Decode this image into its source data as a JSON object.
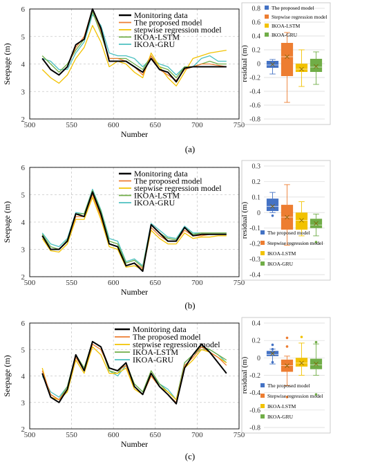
{
  "colors": {
    "monitoring": "#000000",
    "proposed": "#ED7D31",
    "stepwise": "#F2C200",
    "lstm": "#70AD47",
    "gru": "#4BC0C0",
    "box_proposed": "#4472C4",
    "box_stepwise": "#ED7D31",
    "box_lstm": "#F2C200",
    "box_gru": "#70AD47"
  },
  "panels": [
    {
      "caption": "(a)"
    },
    {
      "caption": "(b)"
    },
    {
      "caption": "(c)"
    }
  ],
  "chart_data": [
    {
      "type": "line",
      "panel": "a",
      "xlabel": "Number",
      "ylabel": "Seepage (m)",
      "xlim": [
        500,
        750
      ],
      "ylim": [
        2,
        6
      ],
      "xticks": [
        "500",
        "550",
        "600",
        "650",
        "700",
        "750"
      ],
      "yticks": [
        "2",
        "3",
        "4",
        "5",
        "6"
      ],
      "grid": true,
      "legend_position": "top-right",
      "x": [
        515,
        525,
        535,
        545,
        555,
        565,
        575,
        585,
        595,
        605,
        615,
        625,
        635,
        645,
        655,
        665,
        675,
        685,
        695,
        705,
        715,
        725,
        735
      ],
      "series": [
        {
          "name": "Monitoring data",
          "values": [
            4.2,
            3.8,
            3.6,
            3.9,
            4.7,
            4.9,
            6.0,
            5.3,
            4.1,
            4.1,
            4.1,
            3.9,
            3.7,
            4.2,
            3.8,
            3.7,
            3.35,
            3.85,
            3.9,
            3.9,
            3.9,
            3.9,
            3.9
          ]
        },
        {
          "name": "The proposed model",
          "values": [
            4.2,
            3.8,
            3.6,
            3.9,
            4.6,
            5.0,
            6.0,
            5.2,
            4.2,
            4.2,
            4.1,
            3.9,
            3.6,
            4.3,
            3.8,
            3.6,
            3.4,
            3.8,
            3.9,
            4.0,
            4.0,
            3.95,
            3.9
          ]
        },
        {
          "name": "stepwise regression model",
          "values": [
            3.8,
            3.5,
            3.3,
            3.6,
            4.2,
            4.6,
            5.4,
            4.8,
            3.9,
            4.1,
            4.0,
            3.7,
            3.5,
            4.4,
            3.9,
            3.5,
            3.2,
            3.7,
            4.2,
            4.3,
            4.4,
            4.45,
            4.5
          ]
        },
        {
          "name": "IKOA-LSTM",
          "values": [
            4.3,
            4.0,
            3.7,
            4.0,
            4.5,
            4.9,
            5.9,
            5.1,
            4.2,
            4.2,
            4.2,
            4.0,
            3.8,
            4.3,
            3.9,
            3.8,
            3.5,
            3.9,
            3.9,
            4.0,
            4.1,
            4.0,
            4.0
          ]
        },
        {
          "name": "IKOA-GRU",
          "values": [
            4.2,
            4.1,
            3.8,
            3.8,
            4.4,
            4.8,
            5.8,
            5.4,
            4.4,
            4.3,
            4.3,
            4.2,
            3.9,
            4.2,
            4.0,
            3.9,
            3.6,
            3.9,
            3.9,
            4.2,
            4.3,
            4.1,
            4.1
          ]
        }
      ]
    },
    {
      "type": "box",
      "panel": "a",
      "ylabel": "residual (m)",
      "ylim": [
        -0.8,
        0.8
      ],
      "yticks": [
        "-0.8",
        "-0.6",
        "-0.4",
        "-0.2",
        "0",
        "0.2",
        "0.4",
        "0.6",
        "0.8"
      ],
      "legend_position": "top",
      "series": [
        {
          "name": "The proposed model",
          "min": -0.15,
          "q1": -0.06,
          "median": -0.02,
          "q3": 0.04,
          "max": 0.06,
          "mean": -0.01,
          "outliers": []
        },
        {
          "name": "Stepwise regression model",
          "min": -0.56,
          "q1": -0.18,
          "median": 0.1,
          "q3": 0.3,
          "max": 0.45,
          "mean": 0.1,
          "outliers": []
        },
        {
          "name": "IKOA-LSTM",
          "min": -0.33,
          "q1": -0.12,
          "median": -0.08,
          "q3": 0.0,
          "max": 0.2,
          "mean": -0.08,
          "outliers": []
        },
        {
          "name": "IKOA-GRU",
          "min": -0.3,
          "q1": -0.12,
          "median": -0.05,
          "q3": 0.07,
          "max": 0.17,
          "mean": -0.04,
          "outliers": []
        }
      ]
    },
    {
      "type": "line",
      "panel": "b",
      "xlabel": "Number",
      "ylabel": "Seepage (m)",
      "xlim": [
        500,
        750
      ],
      "ylim": [
        2,
        6
      ],
      "xticks": [
        "500",
        "550",
        "600",
        "650",
        "700",
        "750"
      ],
      "yticks": [
        "2",
        "3",
        "4",
        "5",
        "6"
      ],
      "grid": true,
      "legend_position": "top-right",
      "x": [
        515,
        525,
        535,
        545,
        555,
        565,
        575,
        585,
        595,
        605,
        615,
        625,
        635,
        645,
        655,
        665,
        675,
        685,
        695,
        705,
        715,
        725,
        735
      ],
      "series": [
        {
          "name": "Monitoring data",
          "values": [
            3.5,
            3.0,
            3.0,
            3.3,
            4.3,
            4.2,
            5.1,
            4.3,
            3.2,
            3.1,
            2.4,
            2.5,
            2.2,
            3.9,
            3.6,
            3.3,
            3.3,
            3.8,
            3.5,
            3.55,
            3.55,
            3.55,
            3.55
          ]
        },
        {
          "name": "The proposed model",
          "values": [
            3.5,
            3.0,
            3.0,
            3.3,
            4.2,
            4.2,
            5.0,
            4.2,
            3.2,
            3.1,
            2.4,
            2.5,
            2.3,
            3.8,
            3.5,
            3.3,
            3.3,
            3.7,
            3.5,
            3.5,
            3.55,
            3.55,
            3.55
          ]
        },
        {
          "name": "stepwise regression model",
          "values": [
            3.4,
            2.95,
            2.9,
            3.2,
            4.1,
            4.1,
            4.9,
            4.1,
            3.1,
            3.0,
            2.35,
            2.4,
            2.25,
            3.7,
            3.4,
            3.2,
            3.2,
            3.6,
            3.4,
            3.45,
            3.45,
            3.5,
            3.5
          ]
        },
        {
          "name": "IKOA-LSTM",
          "values": [
            3.55,
            3.1,
            3.0,
            3.35,
            4.3,
            4.3,
            5.15,
            4.4,
            3.3,
            3.2,
            2.5,
            2.6,
            2.35,
            3.9,
            3.6,
            3.4,
            3.35,
            3.8,
            3.55,
            3.6,
            3.6,
            3.6,
            3.6
          ]
        },
        {
          "name": "IKOA-GRU",
          "values": [
            3.6,
            3.2,
            3.1,
            3.4,
            4.35,
            4.3,
            5.2,
            4.45,
            3.4,
            3.3,
            2.55,
            2.65,
            2.4,
            3.95,
            3.7,
            3.45,
            3.4,
            3.85,
            3.6,
            3.6,
            3.6,
            3.6,
            3.6
          ]
        }
      ]
    },
    {
      "type": "box",
      "panel": "b",
      "ylabel": "residual (m)",
      "ylim": [
        -0.4,
        0.3
      ],
      "yticks": [
        "-0.4",
        "-0.3",
        "-0.2",
        "-0.1",
        "0",
        "0.1",
        "0.2",
        "0.3"
      ],
      "legend_position": "bottom",
      "series": [
        {
          "name": "The proposed model",
          "min": 0.0,
          "q1": 0.01,
          "median": 0.04,
          "q3": 0.09,
          "max": 0.13,
          "mean": 0.04,
          "outliers": [
            -0.02
          ]
        },
        {
          "name": "Stepwise regression model",
          "min": -0.21,
          "q1": -0.11,
          "median": -0.03,
          "q3": 0.05,
          "max": 0.18,
          "mean": -0.03,
          "outliers": []
        },
        {
          "name": "IKOA-LSTM",
          "min": -0.15,
          "q1": -0.11,
          "median": -0.05,
          "q3": 0.0,
          "max": 0.07,
          "mean": -0.05,
          "outliers": []
        },
        {
          "name": "IKOA-GRU",
          "min": -0.15,
          "q1": -0.1,
          "median": -0.08,
          "q3": -0.04,
          "max": -0.01,
          "mean": -0.07,
          "outliers": [
            -0.19
          ]
        }
      ]
    },
    {
      "type": "line",
      "panel": "c",
      "xlabel": "Number",
      "ylabel": "Seepage (m)",
      "xlim": [
        500,
        750
      ],
      "ylim": [
        2,
        6
      ],
      "xticks": [
        "500",
        "550",
        "600",
        "650",
        "700",
        "750"
      ],
      "yticks": [
        "2",
        "3",
        "4",
        "5",
        "6"
      ],
      "grid": true,
      "legend_position": "top-right",
      "x": [
        515,
        525,
        535,
        545,
        555,
        565,
        575,
        585,
        595,
        605,
        615,
        625,
        635,
        645,
        655,
        665,
        675,
        685,
        695,
        705,
        715,
        725,
        735
      ],
      "series": [
        {
          "name": "Monitoring data",
          "values": [
            4.1,
            3.2,
            3.0,
            3.5,
            4.8,
            4.2,
            5.3,
            5.1,
            4.3,
            4.2,
            4.5,
            3.6,
            3.3,
            4.1,
            3.6,
            3.3,
            2.95,
            4.3,
            4.8,
            5.2,
            4.9,
            4.5,
            4.1
          ]
        },
        {
          "name": "The proposed model",
          "values": [
            4.2,
            3.3,
            3.1,
            3.5,
            4.7,
            4.2,
            5.2,
            5.0,
            4.3,
            4.2,
            4.4,
            3.6,
            3.3,
            4.0,
            3.6,
            3.3,
            3.0,
            4.4,
            4.7,
            5.1,
            4.9,
            4.7,
            4.4
          ]
        },
        {
          "name": "stepwise regression model",
          "values": [
            4.3,
            3.2,
            3.1,
            3.4,
            4.6,
            4.1,
            5.1,
            4.8,
            4.1,
            4.1,
            4.3,
            3.5,
            3.3,
            4.0,
            3.6,
            3.4,
            3.1,
            4.3,
            4.6,
            5.0,
            4.9,
            4.7,
            4.5
          ]
        },
        {
          "name": "IKOA-LSTM",
          "values": [
            4.1,
            3.3,
            3.1,
            3.6,
            4.8,
            4.3,
            5.3,
            5.1,
            4.2,
            4.1,
            4.5,
            3.7,
            3.4,
            4.2,
            3.7,
            3.4,
            3.1,
            4.5,
            4.8,
            5.1,
            5.0,
            4.8,
            4.6
          ]
        },
        {
          "name": "IKOA-GRU",
          "values": [
            4.0,
            3.4,
            3.2,
            3.6,
            4.8,
            4.3,
            5.3,
            5.1,
            4.2,
            4.0,
            4.4,
            3.7,
            3.4,
            4.1,
            3.7,
            3.5,
            3.1,
            4.5,
            4.8,
            5.0,
            5.0,
            4.8,
            4.5
          ]
        }
      ]
    },
    {
      "type": "box",
      "panel": "c",
      "ylabel": "residual (m)",
      "ylim": [
        -0.8,
        0.4
      ],
      "yticks": [
        "-0.8",
        "-0.6",
        "-0.4",
        "-0.2",
        "0",
        "0.2",
        "0.4"
      ],
      "legend_position": "bottom",
      "series": [
        {
          "name": "The proposed model",
          "min": -0.07,
          "q1": 0.02,
          "median": 0.04,
          "q3": 0.08,
          "max": 0.1,
          "mean": 0.05,
          "outliers": [
            0.15,
            0.1,
            -0.05
          ]
        },
        {
          "name": "Stepwise regression model",
          "min": -0.32,
          "q1": -0.16,
          "median": -0.09,
          "q3": -0.02,
          "max": 0.02,
          "mean": -0.09,
          "outliers": [
            0.23,
            0.13,
            -0.45
          ]
        },
        {
          "name": "IKOA-LSTM",
          "min": -0.2,
          "q1": -0.1,
          "median": -0.06,
          "q3": 0.0,
          "max": 0.17,
          "mean": -0.06,
          "outliers": [
            0.24
          ]
        },
        {
          "name": "IKOA-GRU",
          "min": -0.2,
          "q1": -0.13,
          "median": -0.08,
          "q3": -0.01,
          "max": 0.16,
          "mean": -0.07,
          "outliers": [
            0.18,
            -0.42
          ]
        }
      ]
    }
  ]
}
